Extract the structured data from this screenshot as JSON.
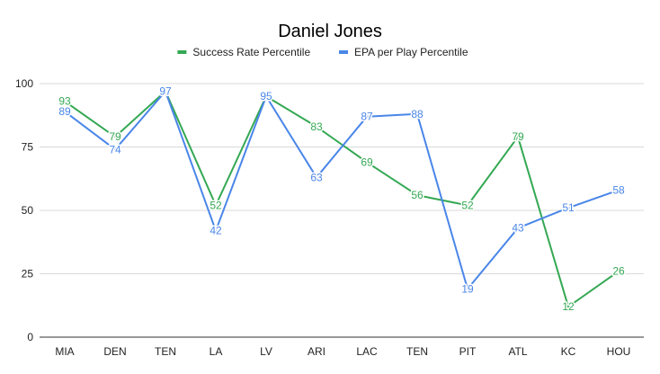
{
  "chart_data": {
    "type": "line",
    "title": "Daniel Jones",
    "xlabel": "",
    "ylabel": "",
    "ylim": [
      0,
      100
    ],
    "yticks": [
      0,
      25,
      50,
      75,
      100
    ],
    "grid": true,
    "legend_position": "top-center",
    "categories": [
      "MIA",
      "DEN",
      "TEN",
      "LA",
      "LV",
      "ARI",
      "LAC",
      "TEN",
      "PIT",
      "ATL",
      "KC",
      "HOU"
    ],
    "series": [
      {
        "name": "Success Rate Percentile",
        "color": "#34a853",
        "values": [
          93,
          79,
          97,
          52,
          95,
          83,
          69,
          56,
          52,
          79,
          12,
          26
        ]
      },
      {
        "name": "EPA per Play Percentile",
        "color": "#4a86e8",
        "values": [
          89,
          74,
          97,
          42,
          95,
          63,
          87,
          88,
          19,
          43,
          51,
          58
        ]
      }
    ]
  }
}
